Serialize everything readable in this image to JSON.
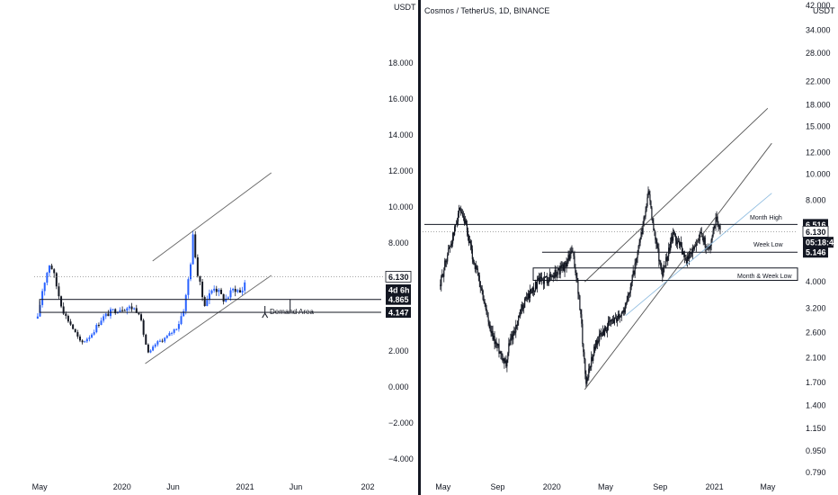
{
  "chart_data": [
    {
      "type": "candlestick",
      "panel": "left",
      "title": "",
      "ylabel": "USDT",
      "ylim": [
        -5.0,
        20.5
      ],
      "scale": "linear",
      "grid": false,
      "y_ticks": [
        "18.000",
        "16.000",
        "14.000",
        "12.000",
        "10.000",
        "8.000",
        "6.000",
        "4.000",
        "2.000",
        "0.000",
        "−2.000",
        "−4.000"
      ],
      "y_tick_values": [
        18,
        16,
        14,
        12,
        10,
        8,
        6,
        4,
        2,
        0,
        -2,
        -4
      ],
      "x_ticks": [
        "May",
        "2020",
        "Jun",
        "2021",
        "Jun",
        "202"
      ],
      "x_tick_dates": [
        "2019-05",
        "2020-01",
        "2020-06",
        "2021-01",
        "2021-06",
        "2022-01"
      ],
      "xlim": [
        "2019-04-20",
        "2022-02-10"
      ],
      "candle_colors": {
        "up": "#2962ff",
        "down": "#131722"
      },
      "price_path": [
        [
          "2019-04-25",
          3.8
        ],
        [
          "2019-05-10",
          5.5
        ],
        [
          "2019-05-20",
          6.2
        ],
        [
          "2019-06-01",
          7.0
        ],
        [
          "2019-06-15",
          6.0
        ],
        [
          "2019-07-01",
          4.8
        ],
        [
          "2019-07-15",
          4.0
        ],
        [
          "2019-08-01",
          3.5
        ],
        [
          "2019-09-01",
          2.4
        ],
        [
          "2019-10-01",
          2.9
        ],
        [
          "2019-11-01",
          3.8
        ],
        [
          "2019-12-01",
          4.2
        ],
        [
          "2020-01-01",
          4.4
        ],
        [
          "2020-02-01",
          4.4
        ],
        [
          "2020-02-20",
          4.2
        ],
        [
          "2020-03-10",
          2.5
        ],
        [
          "2020-03-20",
          1.8
        ],
        [
          "2020-04-10",
          2.4
        ],
        [
          "2020-05-15",
          2.8
        ],
        [
          "2020-06-15",
          3.4
        ],
        [
          "2020-07-05",
          4.5
        ],
        [
          "2020-07-20",
          6.5
        ],
        [
          "2020-08-01",
          8.6
        ],
        [
          "2020-08-10",
          6.5
        ],
        [
          "2020-09-01",
          4.6
        ],
        [
          "2020-10-01",
          5.6
        ],
        [
          "2020-11-01",
          4.8
        ],
        [
          "2020-12-01",
          5.5
        ],
        [
          "2020-12-20",
          5.2
        ],
        [
          "2021-01-05",
          6.1
        ]
      ],
      "channel_lines": [
        {
          "from": [
            "2020-04-01",
            7.0
          ],
          "to": [
            "2021-03-20",
            11.9
          ]
        },
        {
          "from": [
            "2020-03-10",
            1.3
          ],
          "to": [
            "2021-03-20",
            6.2
          ]
        }
      ],
      "demand_zone": {
        "y_top": 4.865,
        "y_bottom": 4.147,
        "x_from": "2019-05-01",
        "x_to": "2021-05-15",
        "label": "Demand Area"
      },
      "last_price_line": 6.13,
      "price_labels": [
        {
          "text": "6.130",
          "value": 6.13,
          "style": "light"
        },
        {
          "text": "4d 6h",
          "value": 5.4,
          "style": "dark"
        },
        {
          "text": "4.865",
          "value": 4.865,
          "style": "dark"
        },
        {
          "text": "4.147",
          "value": 4.147,
          "style": "dark"
        }
      ]
    },
    {
      "type": "candlestick",
      "panel": "right",
      "title": "Cosmos / TetherUS, 1D, BINANCE",
      "ylabel": "USDT",
      "scale": "log",
      "ylim": [
        0.79,
        42.0
      ],
      "grid": false,
      "y_ticks": [
        "42.000",
        "34.000",
        "28.000",
        "22.000",
        "18.000",
        "15.000",
        "12.000",
        "10.000",
        "8.000",
        "6.000",
        "4.000",
        "3.200",
        "2.600",
        "2.100",
        "1.700",
        "1.400",
        "1.150",
        "0.950",
        "0.790"
      ],
      "y_tick_values": [
        42,
        34,
        28,
        22,
        18,
        15,
        12,
        10,
        8,
        6,
        4,
        3.2,
        2.6,
        2.1,
        1.7,
        1.4,
        1.15,
        0.95,
        0.79
      ],
      "x_ticks": [
        "May",
        "Sep",
        "2020",
        "May",
        "Sep",
        "2021",
        "May"
      ],
      "x_tick_dates": [
        "2019-05",
        "2019-09",
        "2020-01",
        "2020-05",
        "2020-09",
        "2021-01",
        "2021-05"
      ],
      "xlim": [
        "2019-03-20",
        "2021-07-01"
      ],
      "candle_colors": {
        "up": "#131722",
        "down": "#131722"
      },
      "price_path": [
        [
          "2019-04-25",
          3.9
        ],
        [
          "2019-05-10",
          5.0
        ],
        [
          "2019-05-25",
          6.0
        ],
        [
          "2019-06-05",
          7.3
        ],
        [
          "2019-06-20",
          6.5
        ],
        [
          "2019-07-05",
          5.0
        ],
        [
          "2019-07-25",
          3.8
        ],
        [
          "2019-08-15",
          2.6
        ],
        [
          "2019-09-01",
          2.3
        ],
        [
          "2019-09-20",
          2.0
        ],
        [
          "2019-09-28",
          2.4
        ],
        [
          "2019-10-15",
          2.8
        ],
        [
          "2019-11-01",
          3.4
        ],
        [
          "2019-12-01",
          4.0
        ],
        [
          "2020-01-01",
          4.2
        ],
        [
          "2020-02-01",
          4.6
        ],
        [
          "2020-02-15",
          5.2
        ],
        [
          "2020-02-25",
          4.2
        ],
        [
          "2020-03-12",
          2.2
        ],
        [
          "2020-03-18",
          1.7
        ],
        [
          "2020-04-10",
          2.4
        ],
        [
          "2020-05-10",
          2.8
        ],
        [
          "2020-06-15",
          3.2
        ],
        [
          "2020-07-10",
          4.8
        ],
        [
          "2020-07-25",
          6.5
        ],
        [
          "2020-08-05",
          8.6
        ],
        [
          "2020-08-15",
          6.5
        ],
        [
          "2020-09-05",
          4.2
        ],
        [
          "2020-10-01",
          6.0
        ],
        [
          "2020-11-01",
          4.8
        ],
        [
          "2020-12-01",
          6.0
        ],
        [
          "2020-12-20",
          5.2
        ],
        [
          "2021-01-05",
          7.0
        ],
        [
          "2021-01-15",
          6.1
        ]
      ],
      "channel_lines": [
        {
          "from": [
            "2020-03-15",
            1.6
          ],
          "to": [
            "2021-05-10",
            13.0
          ],
          "color": "#555555"
        },
        {
          "from": [
            "2020-03-15",
            4.0
          ],
          "to": [
            "2021-05-01",
            17.5
          ],
          "color": "#555555"
        },
        {
          "from": [
            "2020-06-15",
            3.0
          ],
          "to": [
            "2021-05-10",
            8.5
          ],
          "color": "#90bde0"
        }
      ],
      "levels": [
        {
          "label": "Month High",
          "value": 6.516,
          "x_from": "2019-03-20"
        },
        {
          "label": "Week Low",
          "value": 5.146,
          "x_from": "2019-12-10"
        },
        {
          "label": "Month & Week Low",
          "value": 4.5,
          "x_from": "2019-11-20",
          "zone_bottom": 4.05
        }
      ],
      "last_price_line": 6.13,
      "price_labels": [
        {
          "text": "6.516",
          "value": 6.516,
          "style": "dark"
        },
        {
          "text": "6.130",
          "value": 6.13,
          "style": "light"
        },
        {
          "text": "05:18:43",
          "value": 5.6,
          "style": "dark"
        },
        {
          "text": "5.146",
          "value": 5.146,
          "style": "dark"
        }
      ]
    }
  ]
}
